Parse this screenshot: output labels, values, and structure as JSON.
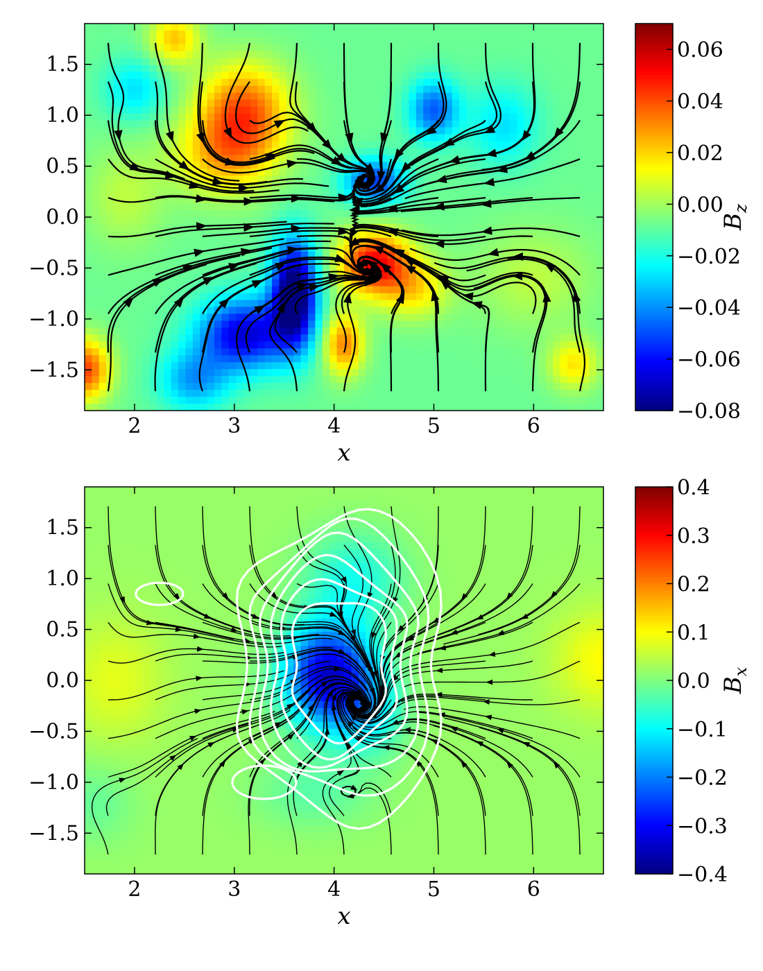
{
  "chart_data": [
    {
      "type": "heatmap",
      "panel": "top",
      "field": "B_z",
      "xlabel": "x",
      "colorbar_label": "B",
      "colorbar_sub": "z",
      "xlim": [
        1.5,
        6.7
      ],
      "ylim": [
        -1.9,
        1.9
      ],
      "xticks": [
        2,
        3,
        4,
        5,
        6
      ],
      "yticks": [
        1.5,
        1.0,
        0.5,
        0.0,
        -0.5,
        -1.0,
        -1.5
      ],
      "ytick_labels": [
        "1.5",
        "1.0",
        "0.5",
        "0.0",
        "−0.5",
        "−1.0",
        "−1.5"
      ],
      "clim": [
        -0.08,
        0.07
      ],
      "cbar_ticks": [
        0.06,
        0.04,
        0.02,
        0.0,
        -0.02,
        -0.04,
        -0.06,
        -0.08
      ],
      "cbar_tick_labels": [
        "0.06",
        "0.04",
        "0.02",
        "0.00",
        "−0.02",
        "−0.04",
        "−0.06",
        "−0.08"
      ],
      "colormap": "jet",
      "background_value": -0.008,
      "features": [
        {
          "x": 3.1,
          "y": 1.05,
          "sx": 0.45,
          "sy": 0.45,
          "amp": 0.045
        },
        {
          "x": 2.4,
          "y": 1.75,
          "sx": 0.25,
          "sy": 0.25,
          "amp": 0.03
        },
        {
          "x": 2.9,
          "y": 0.6,
          "sx": 0.5,
          "sy": 0.4,
          "amp": 0.03
        },
        {
          "x": 4.4,
          "y": -0.45,
          "sx": 0.35,
          "sy": 0.3,
          "amp": 0.06
        },
        {
          "x": 4.8,
          "y": -0.7,
          "sx": 0.35,
          "sy": 0.3,
          "amp": 0.025
        },
        {
          "x": 4.1,
          "y": -1.25,
          "sx": 0.2,
          "sy": 0.3,
          "amp": 0.04
        },
        {
          "x": 1.5,
          "y": -1.5,
          "sx": 0.25,
          "sy": 0.3,
          "amp": 0.05
        },
        {
          "x": 6.4,
          "y": -1.45,
          "sx": 0.25,
          "sy": 0.25,
          "amp": 0.025
        },
        {
          "x": 6.0,
          "y": -0.6,
          "sx": 0.6,
          "sy": 0.5,
          "amp": 0.012
        },
        {
          "x": 1.9,
          "y": 0.2,
          "sx": 0.4,
          "sy": 0.5,
          "amp": 0.012
        },
        {
          "x": 3.6,
          "y": -0.75,
          "sx": 0.22,
          "sy": 0.5,
          "amp": -0.085
        },
        {
          "x": 3.1,
          "y": -1.15,
          "sx": 0.45,
          "sy": 0.35,
          "amp": -0.06
        },
        {
          "x": 2.6,
          "y": -1.6,
          "sx": 0.35,
          "sy": 0.3,
          "amp": -0.03
        },
        {
          "x": 5.0,
          "y": 1.05,
          "sx": 0.25,
          "sy": 0.3,
          "amp": -0.04
        },
        {
          "x": 4.4,
          "y": 0.35,
          "sx": 0.3,
          "sy": 0.22,
          "amp": -0.045
        },
        {
          "x": 2.0,
          "y": 1.25,
          "sx": 0.3,
          "sy": 0.3,
          "amp": -0.02
        },
        {
          "x": 5.7,
          "y": 0.9,
          "sx": 0.35,
          "sy": 0.4,
          "amp": -0.02
        }
      ],
      "streamlines": true,
      "contours": false
    },
    {
      "type": "heatmap",
      "panel": "bottom",
      "field": "B_x",
      "xlabel": "x",
      "colorbar_label": "B",
      "colorbar_sub": "x",
      "xlim": [
        1.5,
        6.7
      ],
      "ylim": [
        -1.9,
        1.9
      ],
      "xticks": [
        2,
        3,
        4,
        5,
        6
      ],
      "yticks": [
        1.5,
        1.0,
        0.5,
        0.0,
        -0.5,
        -1.0,
        -1.5
      ],
      "ytick_labels": [
        "1.5",
        "1.0",
        "0.5",
        "0.0",
        "−0.5",
        "−1.0",
        "−1.5"
      ],
      "clim": [
        -0.4,
        0.4
      ],
      "cbar_ticks": [
        0.4,
        0.3,
        0.2,
        0.1,
        0.0,
        -0.1,
        -0.2,
        -0.3,
        -0.4
      ],
      "cbar_tick_labels": [
        "0.4",
        "0.3",
        "0.2",
        "0.1",
        "0.0",
        "−0.1",
        "−0.2",
        "−0.3",
        "−0.4"
      ],
      "colormap": "jet",
      "background_value": 0.02,
      "features": [
        {
          "x": 3.95,
          "y": 0.05,
          "sx": 0.45,
          "sy": 0.5,
          "amp": -0.36
        },
        {
          "x": 4.35,
          "y": -0.35,
          "sx": 0.35,
          "sy": 0.4,
          "amp": -0.1
        },
        {
          "x": 4.2,
          "y": 1.0,
          "sx": 0.5,
          "sy": 0.45,
          "amp": -0.1
        },
        {
          "x": 3.8,
          "y": -1.1,
          "sx": 0.6,
          "sy": 0.35,
          "amp": -0.05
        },
        {
          "x": 6.7,
          "y": 0.2,
          "sx": 0.5,
          "sy": 0.5,
          "amp": 0.08
        },
        {
          "x": 1.8,
          "y": 0.0,
          "sx": 0.5,
          "sy": 0.6,
          "amp": 0.06
        },
        {
          "x": 1.6,
          "y": -1.2,
          "sx": 0.4,
          "sy": 0.4,
          "amp": -0.04
        }
      ],
      "streamlines": true,
      "contours": true
    }
  ]
}
